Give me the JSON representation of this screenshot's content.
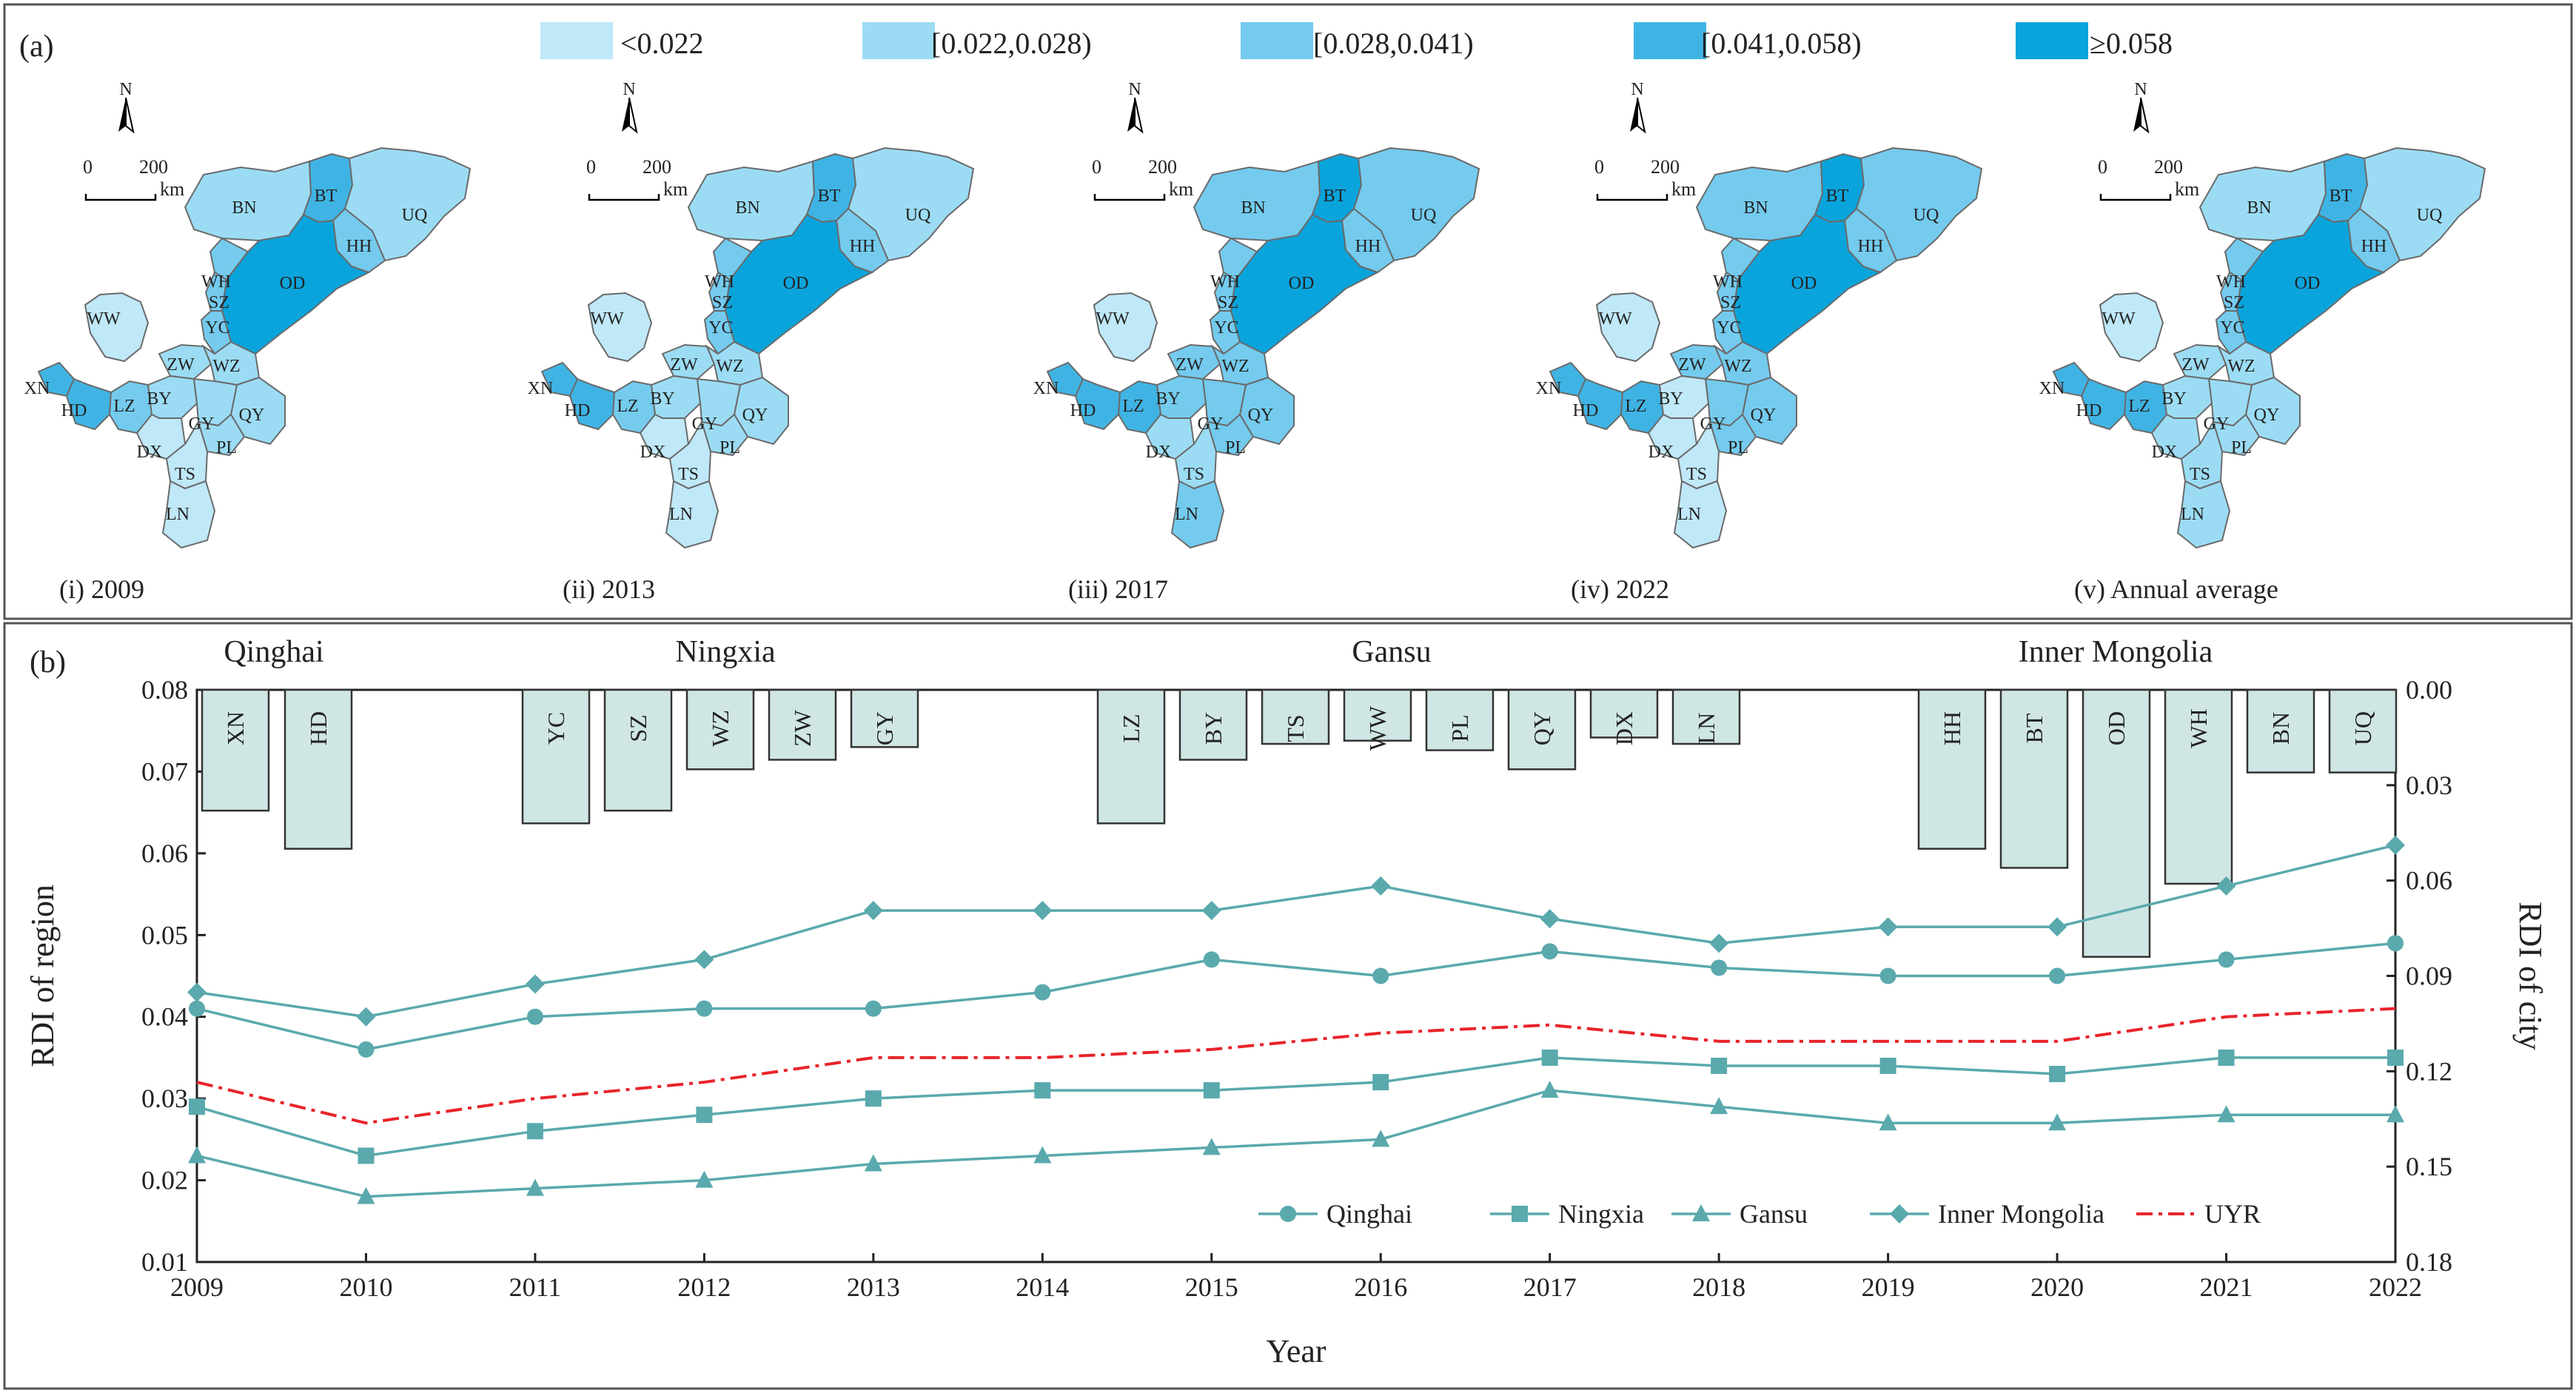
{
  "panel_a": {
    "label": "(a)",
    "legend": [
      {
        "label": "<0.022",
        "color": "#bfe8f8"
      },
      {
        "label": "[0.022,0.028)",
        "color": "#9bdcf4"
      },
      {
        "label": "[0.028,0.041)",
        "color": "#74cbee"
      },
      {
        "label": "[0.041,0.058)",
        "color": "#3fb4e4"
      },
      {
        "label": "≥0.058",
        "color": "#0aa4dc"
      }
    ],
    "north_label": "N",
    "scale_zero": "0",
    "scale_max": "200",
    "scale_unit": "km",
    "maps": [
      {
        "caption": "(i)  2009",
        "fills": {
          "BN": "#9bdcf4",
          "BT": "#3fb4e4",
          "UQ": "#9bdcf4",
          "HH": "#74cbee",
          "OD": "#0aa4dc",
          "WW": "#bfe8f8",
          "XN": "#3fb4e4",
          "HD": "#3fb4e4",
          "LZ": "#74cbee",
          "BY": "#9bdcf4",
          "ZW": "#9bdcf4",
          "WZ": "#9bdcf4",
          "QY": "#9bdcf4",
          "GY": "#9bdcf4",
          "PL": "#9bdcf4",
          "DX": "#bfe8f8",
          "TS": "#bfe8f8",
          "LN": "#bfe8f8",
          "SZ": "#74cbee",
          "YC": "#74cbee",
          "WH": "#74cbee"
        }
      },
      {
        "caption": "(ii)  2013",
        "fills": {
          "BN": "#9bdcf4",
          "BT": "#3fb4e4",
          "UQ": "#9bdcf4",
          "HH": "#74cbee",
          "OD": "#0aa4dc",
          "WW": "#bfe8f8",
          "XN": "#3fb4e4",
          "HD": "#3fb4e4",
          "LZ": "#74cbee",
          "BY": "#9bdcf4",
          "ZW": "#9bdcf4",
          "WZ": "#9bdcf4",
          "QY": "#9bdcf4",
          "GY": "#9bdcf4",
          "PL": "#9bdcf4",
          "DX": "#bfe8f8",
          "TS": "#bfe8f8",
          "LN": "#bfe8f8",
          "SZ": "#74cbee",
          "YC": "#74cbee",
          "WH": "#74cbee"
        }
      },
      {
        "caption": "(iii)  2017",
        "fills": {
          "BN": "#74cbee",
          "BT": "#0aa4dc",
          "UQ": "#74cbee",
          "HH": "#74cbee",
          "OD": "#0aa4dc",
          "WW": "#bfe8f8",
          "XN": "#3fb4e4",
          "HD": "#3fb4e4",
          "LZ": "#3fb4e4",
          "BY": "#74cbee",
          "ZW": "#74cbee",
          "WZ": "#74cbee",
          "QY": "#74cbee",
          "GY": "#74cbee",
          "PL": "#74cbee",
          "DX": "#9bdcf4",
          "TS": "#9bdcf4",
          "LN": "#74cbee",
          "SZ": "#74cbee",
          "YC": "#74cbee",
          "WH": "#74cbee"
        }
      },
      {
        "caption": "(iv)  2022",
        "fills": {
          "BN": "#74cbee",
          "BT": "#0aa4dc",
          "UQ": "#74cbee",
          "HH": "#74cbee",
          "OD": "#0aa4dc",
          "WW": "#bfe8f8",
          "XN": "#3fb4e4",
          "HD": "#3fb4e4",
          "LZ": "#3fb4e4",
          "BY": "#bfe8f8",
          "ZW": "#74cbee",
          "WZ": "#74cbee",
          "QY": "#74cbee",
          "GY": "#74cbee",
          "PL": "#74cbee",
          "DX": "#bfe8f8",
          "TS": "#bfe8f8",
          "LN": "#bfe8f8",
          "SZ": "#74cbee",
          "YC": "#74cbee",
          "WH": "#74cbee"
        }
      },
      {
        "caption": "(v)  Annual average",
        "fills": {
          "BN": "#9bdcf4",
          "BT": "#3fb4e4",
          "UQ": "#9bdcf4",
          "HH": "#74cbee",
          "OD": "#0aa4dc",
          "WW": "#bfe8f8",
          "XN": "#3fb4e4",
          "HD": "#3fb4e4",
          "LZ": "#3fb4e4",
          "BY": "#9bdcf4",
          "ZW": "#9bdcf4",
          "WZ": "#9bdcf4",
          "QY": "#9bdcf4",
          "GY": "#9bdcf4",
          "PL": "#9bdcf4",
          "DX": "#9bdcf4",
          "TS": "#9bdcf4",
          "LN": "#9bdcf4",
          "SZ": "#74cbee",
          "YC": "#74cbee",
          "WH": "#74cbee"
        }
      }
    ]
  },
  "panel_b": {
    "label": "(b)"
  },
  "chart_data": {
    "type": "line",
    "title": "",
    "xlabel": "Year",
    "ylabel": "RDI of region",
    "y2label": "RDI of city",
    "x": [
      2009,
      2010,
      2011,
      2012,
      2013,
      2014,
      2015,
      2016,
      2017,
      2018,
      2019,
      2020,
      2021,
      2022
    ],
    "ylim": [
      0.01,
      0.08
    ],
    "yticks": [
      "0.01",
      "0.02",
      "0.03",
      "0.04",
      "0.05",
      "0.06",
      "0.07",
      "0.08"
    ],
    "y2lim": [
      0.0,
      0.18
    ],
    "y2ticks": [
      "0.00",
      "0.03",
      "0.06",
      "0.09",
      "0.12",
      "0.15",
      "0.18"
    ],
    "series": [
      {
        "name": "Qinghai",
        "marker": "circle",
        "values": [
          0.041,
          0.036,
          0.04,
          0.041,
          0.041,
          0.043,
          0.047,
          0.045,
          0.048,
          0.046,
          0.045,
          0.045,
          0.047,
          0.049
        ]
      },
      {
        "name": "Ningxia",
        "marker": "square",
        "values": [
          0.029,
          0.023,
          0.026,
          0.028,
          0.03,
          0.031,
          0.031,
          0.032,
          0.035,
          0.034,
          0.034,
          0.033,
          0.035,
          0.035
        ]
      },
      {
        "name": "Gansu",
        "marker": "triangle",
        "values": [
          0.023,
          0.018,
          0.019,
          0.02,
          0.022,
          0.023,
          0.024,
          0.025,
          0.031,
          0.029,
          0.027,
          0.027,
          0.028,
          0.028
        ]
      },
      {
        "name": "Inner Mongolia",
        "marker": "diamond",
        "values": [
          0.043,
          0.04,
          0.044,
          0.047,
          0.053,
          0.053,
          0.053,
          0.056,
          0.052,
          0.049,
          0.051,
          0.051,
          0.056,
          0.061
        ]
      },
      {
        "name": "UYR",
        "marker": "none",
        "values": [
          0.032,
          0.027,
          0.03,
          0.032,
          0.035,
          0.035,
          0.036,
          0.038,
          0.039,
          0.037,
          0.037,
          0.037,
          0.04,
          0.041
        ]
      }
    ],
    "city_bars": [
      {
        "city": "XN",
        "value": 0.038
      },
      {
        "city": "HD",
        "value": 0.05
      },
      {
        "city": "YC",
        "value": 0.042
      },
      {
        "city": "SZ",
        "value": 0.038
      },
      {
        "city": "WZ",
        "value": 0.025
      },
      {
        "city": "ZW",
        "value": 0.022
      },
      {
        "city": "GY",
        "value": 0.018
      },
      {
        "city": "LZ",
        "value": 0.042
      },
      {
        "city": "BY",
        "value": 0.022
      },
      {
        "city": "TS",
        "value": 0.017
      },
      {
        "city": "WW",
        "value": 0.016
      },
      {
        "city": "PL",
        "value": 0.019
      },
      {
        "city": "QY",
        "value": 0.025
      },
      {
        "city": "DX",
        "value": 0.015
      },
      {
        "city": "LN",
        "value": 0.017
      },
      {
        "city": "HH",
        "value": 0.05
      },
      {
        "city": "BT",
        "value": 0.056
      },
      {
        "city": "OD",
        "value": 0.084
      },
      {
        "city": "WH",
        "value": 0.061
      },
      {
        "city": "BN",
        "value": 0.026
      },
      {
        "city": "UQ",
        "value": 0.026
      }
    ],
    "region_labels": [
      "Qinghai",
      "Ningxia",
      "Gansu",
      "Inner Mongolia"
    ],
    "legend_position": "bottom-right",
    "colors": {
      "line": "#5aa9ad",
      "uyr": "#e8242b",
      "bar_fill": "#cfe6e4",
      "bar_stroke": "#333333"
    }
  }
}
